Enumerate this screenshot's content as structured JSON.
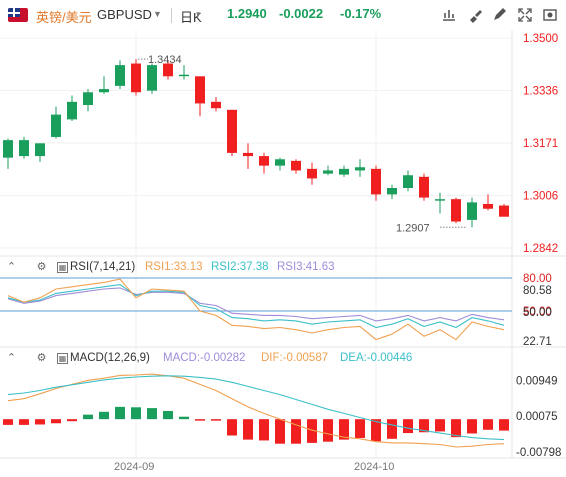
{
  "toolbar": {
    "name": "英镑/美元",
    "code": "GBPUSD",
    "period": "日K",
    "price": "1.2940",
    "change": "-0.0022",
    "change_pct": "-0.17%",
    "buttons": [
      "chart-settings-icon",
      "brush-icon",
      "drawing-tool-icon",
      "fullscreen-icon",
      "screenshot-icon"
    ]
  },
  "rsi": {
    "name": "RSI(7,14,21)",
    "rsi1": "RSI1:33.13",
    "rsi2": "RSI2:37.38",
    "rsi3": "RSI3:41.63",
    "ticks": [
      "80.00",
      "80.58",
      "50.00",
      "50.00",
      "22.71"
    ]
  },
  "macd": {
    "name": "MACD(12,26,9)",
    "macd": "MACD:-0.00282",
    "dif": "DIF:-0.00587",
    "dea": "DEA:-0.00446",
    "ticks": [
      "0.00949",
      "0.00075",
      "-0.00798"
    ]
  },
  "dates": [
    "2024-09",
    "2024-10"
  ],
  "colors": {
    "up": "#1a9e5c",
    "down": "#f02020",
    "rsi1": "#f0a050",
    "rsi2": "#3cc0c8",
    "rsi3": "#a08cd8",
    "dif": "#f0a050",
    "dea": "#3cc0c8"
  },
  "chart_data": {
    "type": "candlestick",
    "ylim": [
      1.2842,
      1.35
    ],
    "yticks": [
      "1.3500",
      "1.3336",
      "1.3171",
      "1.3006",
      "1.2842"
    ],
    "annotations": {
      "high": "1.3434",
      "low": "1.2907"
    },
    "candles": [
      {
        "o": 1.3125,
        "h": 1.3185,
        "l": 1.309,
        "c": 1.318
      },
      {
        "o": 1.313,
        "h": 1.319,
        "l": 1.3122,
        "c": 1.318
      },
      {
        "o": 1.313,
        "h": 1.317,
        "l": 1.3112,
        "c": 1.317
      },
      {
        "o": 1.319,
        "h": 1.3285,
        "l": 1.3185,
        "c": 1.326
      },
      {
        "o": 1.3245,
        "h": 1.332,
        "l": 1.324,
        "c": 1.33
      },
      {
        "o": 1.329,
        "h": 1.334,
        "l": 1.327,
        "c": 1.333
      },
      {
        "o": 1.333,
        "h": 1.338,
        "l": 1.3325,
        "c": 1.334
      },
      {
        "o": 1.335,
        "h": 1.343,
        "l": 1.334,
        "c": 1.3415
      },
      {
        "o": 1.342,
        "h": 1.3434,
        "l": 1.332,
        "c": 1.333
      },
      {
        "o": 1.3335,
        "h": 1.342,
        "l": 1.3325,
        "c": 1.3415
      },
      {
        "o": 1.342,
        "h": 1.343,
        "l": 1.337,
        "c": 1.338
      },
      {
        "o": 1.3385,
        "h": 1.3415,
        "l": 1.337,
        "c": 1.3385
      },
      {
        "o": 1.338,
        "h": 1.338,
        "l": 1.3255,
        "c": 1.3295
      },
      {
        "o": 1.33,
        "h": 1.3315,
        "l": 1.327,
        "c": 1.328
      },
      {
        "o": 1.3275,
        "h": 1.3275,
        "l": 1.313,
        "c": 1.314
      },
      {
        "o": 1.314,
        "h": 1.317,
        "l": 1.309,
        "c": 1.313
      },
      {
        "o": 1.313,
        "h": 1.314,
        "l": 1.3075,
        "c": 1.31
      },
      {
        "o": 1.31,
        "h": 1.3125,
        "l": 1.3085,
        "c": 1.312
      },
      {
        "o": 1.3115,
        "h": 1.312,
        "l": 1.3075,
        "c": 1.3085
      },
      {
        "o": 1.309,
        "h": 1.311,
        "l": 1.304,
        "c": 1.306
      },
      {
        "o": 1.3075,
        "h": 1.31,
        "l": 1.307,
        "c": 1.3085
      },
      {
        "o": 1.3072,
        "h": 1.31,
        "l": 1.3065,
        "c": 1.309
      },
      {
        "o": 1.3085,
        "h": 1.312,
        "l": 1.3065,
        "c": 1.3095
      },
      {
        "o": 1.309,
        "h": 1.31,
        "l": 1.299,
        "c": 1.301
      },
      {
        "o": 1.301,
        "h": 1.304,
        "l": 1.2995,
        "c": 1.303
      },
      {
        "o": 1.303,
        "h": 1.3085,
        "l": 1.302,
        "c": 1.307
      },
      {
        "o": 1.3065,
        "h": 1.3075,
        "l": 1.299,
        "c": 1.3
      },
      {
        "o": 1.2995,
        "h": 1.3015,
        "l": 1.295,
        "c": 1.2995
      },
      {
        "o": 1.2995,
        "h": 1.3,
        "l": 1.292,
        "c": 1.2925
      },
      {
        "o": 1.293,
        "h": 1.3,
        "l": 1.2907,
        "c": 1.2985
      },
      {
        "o": 1.298,
        "h": 1.301,
        "l": 1.296,
        "c": 1.2965
      },
      {
        "o": 1.2975,
        "h": 1.298,
        "l": 1.2945,
        "c": 1.294
      }
    ],
    "rsi1": [
      64,
      58,
      62,
      70,
      72,
      74,
      76,
      79,
      62,
      70,
      69,
      68,
      50,
      46,
      37,
      36,
      34,
      35,
      33,
      30,
      33,
      35,
      36,
      24,
      29,
      38,
      27,
      33,
      24,
      40,
      36,
      33
    ],
    "rsi2": [
      62,
      58,
      60,
      66,
      68,
      70,
      72,
      74,
      64,
      68,
      68,
      67,
      55,
      52,
      44,
      43,
      41,
      42,
      41,
      38,
      40,
      41,
      42,
      35,
      38,
      43,
      36,
      40,
      35,
      44,
      41,
      37
    ],
    "rsi3": [
      61,
      57,
      59,
      64,
      66,
      68,
      70,
      71,
      65,
      67,
      67,
      66,
      57,
      55,
      48,
      47,
      46,
      46,
      45,
      43,
      44,
      45,
      46,
      41,
      43,
      46,
      41,
      44,
      41,
      47,
      44,
      42
    ],
    "macd_hist": [
      -0.0014,
      -0.0014,
      -0.0013,
      -0.001,
      -0.0005,
      0.0011,
      0.0018,
      0.003,
      0.0029,
      0.0027,
      0.002,
      0.0006,
      -0.0002,
      -0.0002,
      -0.004,
      -0.005,
      -0.0052,
      -0.006,
      -0.006,
      -0.0058,
      -0.0055,
      -0.005,
      -0.0046,
      -0.0054,
      -0.0048,
      -0.0034,
      -0.0032,
      -0.003,
      -0.0044,
      -0.0035,
      -0.0026,
      -0.0028
    ],
    "dif": [
      0.0045,
      0.005,
      0.0062,
      0.0075,
      0.0085,
      0.0095,
      0.01,
      0.0107,
      0.0108,
      0.011,
      0.0106,
      0.01,
      0.0085,
      0.007,
      0.005,
      0.003,
      0.0014,
      0.0,
      -0.0014,
      -0.0027,
      -0.0036,
      -0.0044,
      -0.0048,
      -0.0055,
      -0.0058,
      -0.0058,
      -0.006,
      -0.0062,
      -0.0068,
      -0.0066,
      -0.0062,
      -0.006
    ],
    "dea": [
      0.006,
      0.0064,
      0.007,
      0.0078,
      0.0084,
      0.009,
      0.0096,
      0.01,
      0.0103,
      0.0105,
      0.0106,
      0.0105,
      0.0102,
      0.0098,
      0.009,
      0.008,
      0.007,
      0.006,
      0.0048,
      0.0036,
      0.0024,
      0.0014,
      0.0004,
      -0.0006,
      -0.0014,
      -0.0022,
      -0.0028,
      -0.0034,
      -0.004,
      -0.0045,
      -0.0048,
      -0.005
    ]
  }
}
